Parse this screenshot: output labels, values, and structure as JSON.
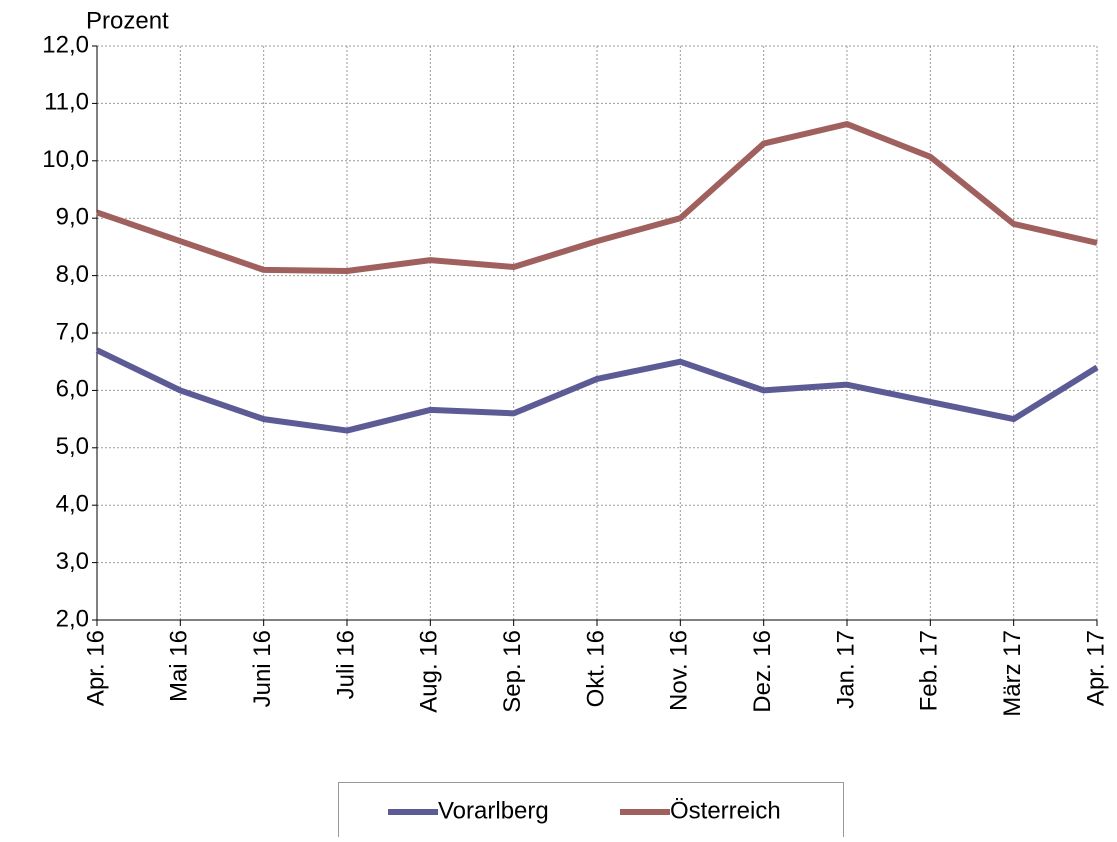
{
  "chart_data": {
    "type": "line",
    "y_label": "Prozent",
    "categories": [
      "Apr. 16",
      "Mai 16",
      "Juni 16",
      "Juli 16",
      "Aug. 16",
      "Sep. 16",
      "Okt. 16",
      "Nov. 16",
      "Dez. 16",
      "Jan. 17",
      "Feb. 17",
      "März 17",
      "Apr. 17"
    ],
    "series": [
      {
        "name": "Vorarlberg",
        "color": "#5d5b95",
        "values": [
          6.7,
          6.0,
          5.5,
          5.3,
          5.66,
          5.6,
          6.2,
          6.5,
          6.0,
          6.1,
          5.8,
          5.5,
          6.4
        ]
      },
      {
        "name": "Österreich",
        "color": "#a0605e",
        "values": [
          9.1,
          8.6,
          8.1,
          8.08,
          8.27,
          8.15,
          8.6,
          9.0,
          10.3,
          10.64,
          10.07,
          8.9,
          8.57
        ]
      }
    ],
    "ylim": [
      2,
      12
    ],
    "yticks": [
      {
        "value": 2,
        "label": "2,0"
      },
      {
        "value": 3,
        "label": "3,0"
      },
      {
        "value": 4,
        "label": "4,0"
      },
      {
        "value": 5,
        "label": "5,0"
      },
      {
        "value": 6,
        "label": "6,0"
      },
      {
        "value": 7,
        "label": "7,0"
      },
      {
        "value": 8,
        "label": "8,0"
      },
      {
        "value": 9,
        "label": "9,0"
      },
      {
        "value": 10,
        "label": "10,0"
      },
      {
        "value": 11,
        "label": "11,0"
      },
      {
        "value": 12,
        "label": "12,0"
      }
    ],
    "grid": true
  }
}
